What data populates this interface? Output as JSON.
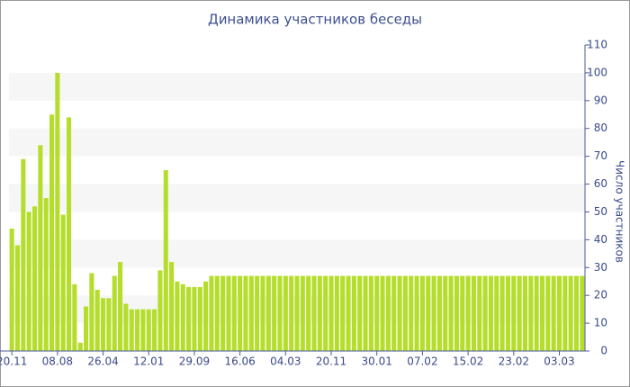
{
  "chart_data": {
    "type": "bar",
    "title": "Динамика участников беседы",
    "y_label": "Число участников",
    "categories": [
      "20.11",
      null,
      null,
      null,
      null,
      null,
      null,
      null,
      "08.08",
      null,
      null,
      null,
      null,
      null,
      null,
      null,
      "26.04",
      null,
      null,
      null,
      null,
      null,
      null,
      null,
      "12.01",
      null,
      null,
      null,
      null,
      null,
      null,
      null,
      "29.09",
      null,
      null,
      null,
      null,
      null,
      null,
      null,
      "16.06",
      null,
      null,
      null,
      null,
      null,
      null,
      null,
      "04.03",
      null,
      null,
      null,
      null,
      null,
      null,
      null,
      "20.11",
      null,
      null,
      null,
      null,
      null,
      null,
      null,
      "30.01",
      null,
      null,
      null,
      null,
      null,
      null,
      null,
      "07.02",
      null,
      null,
      null,
      null,
      null,
      null,
      null,
      "15.02",
      null,
      null,
      null,
      null,
      null,
      null,
      null,
      "23.02",
      null,
      null,
      null,
      null,
      null,
      null,
      null,
      "03.03",
      null,
      null,
      null,
      null
    ],
    "values": [
      44,
      38,
      69,
      50,
      52,
      74,
      55,
      85,
      100,
      49,
      84,
      24,
      3,
      16,
      28,
      22,
      19,
      19,
      27,
      32,
      17,
      15,
      15,
      15,
      15,
      15,
      29,
      65,
      32,
      25,
      24,
      23,
      23,
      23,
      25,
      27,
      27,
      27,
      27,
      27,
      27,
      27,
      27,
      27,
      27,
      27,
      27,
      27,
      27,
      27,
      27,
      27,
      27,
      27,
      27,
      27,
      27,
      27,
      27,
      27,
      27,
      27,
      27,
      27,
      27,
      27,
      27,
      27,
      27,
      27,
      27,
      27,
      27,
      27,
      27,
      27,
      27,
      27,
      27,
      27,
      27,
      27,
      27,
      27,
      27,
      27,
      27,
      27,
      27,
      27,
      27,
      27,
      27,
      27,
      27,
      27,
      27,
      27,
      27,
      27,
      27
    ],
    "color": "#b5dd2b",
    "ylim": [
      0,
      110
    ],
    "yticks": [
      0,
      10,
      20,
      30,
      40,
      50,
      60,
      70,
      80,
      90,
      100,
      110
    ],
    "grid": true
  }
}
